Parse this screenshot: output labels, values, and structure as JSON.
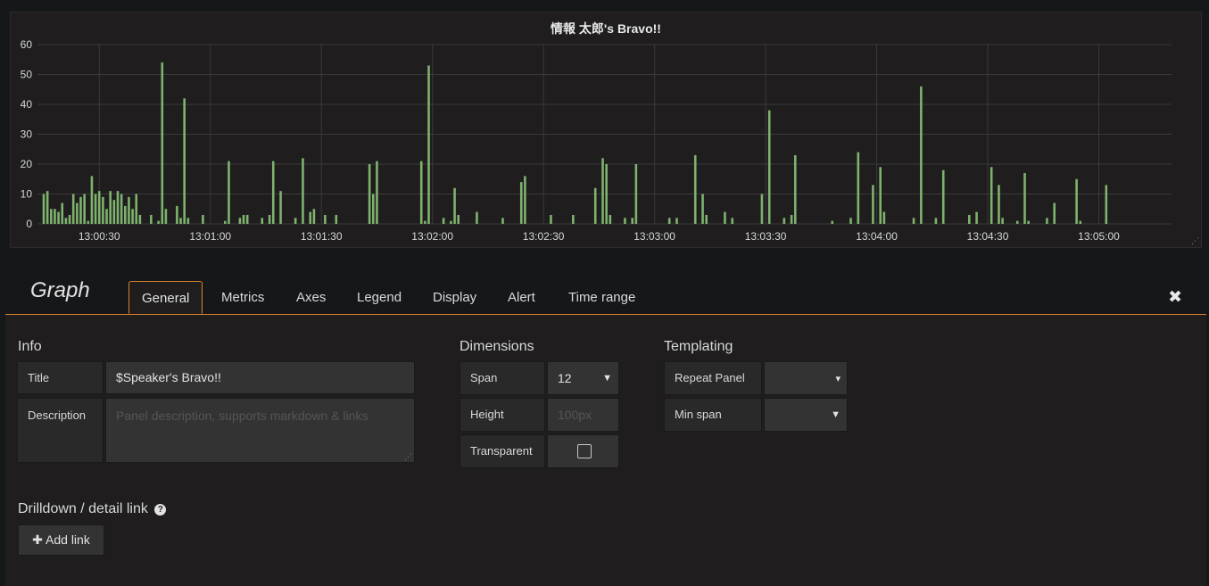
{
  "panel": {
    "title": "情報 太郎's Bravo!!"
  },
  "chart_data": {
    "type": "bar",
    "title": "情報 太郎's Bravo!!",
    "xlabel": "",
    "ylabel": "",
    "ylim": [
      0,
      60
    ],
    "yticks": [
      "0",
      "10",
      "20",
      "30",
      "40",
      "50",
      "60"
    ],
    "xticks": [
      "13:00:30",
      "13:01:00",
      "13:01:30",
      "13:02:00",
      "13:02:30",
      "13:03:00",
      "13:03:30",
      "13:04:00",
      "13:04:30",
      "13:05:00"
    ],
    "grid": true,
    "color": "#7eb26d",
    "x_range_seconds": [
      15,
      310
    ],
    "x_tick_seconds": [
      30,
      60,
      90,
      120,
      150,
      180,
      210,
      240,
      270,
      300
    ],
    "points": [
      [
        15,
        10
      ],
      [
        16,
        11
      ],
      [
        17,
        5
      ],
      [
        18,
        5
      ],
      [
        19,
        4
      ],
      [
        20,
        7
      ],
      [
        21,
        2
      ],
      [
        22,
        3
      ],
      [
        23,
        10
      ],
      [
        24,
        7
      ],
      [
        25,
        9
      ],
      [
        26,
        10
      ],
      [
        27,
        1
      ],
      [
        28,
        16
      ],
      [
        29,
        10
      ],
      [
        30,
        11
      ],
      [
        31,
        9
      ],
      [
        32,
        5
      ],
      [
        33,
        11
      ],
      [
        34,
        8
      ],
      [
        35,
        11
      ],
      [
        36,
        10
      ],
      [
        37,
        6
      ],
      [
        38,
        9
      ],
      [
        39,
        5
      ],
      [
        40,
        10
      ],
      [
        41,
        3
      ],
      [
        44,
        3
      ],
      [
        46,
        1
      ],
      [
        47,
        54
      ],
      [
        48,
        5
      ],
      [
        51,
        6
      ],
      [
        52,
        2
      ],
      [
        53,
        42
      ],
      [
        54,
        2
      ],
      [
        58,
        3
      ],
      [
        64,
        1
      ],
      [
        65,
        21
      ],
      [
        68,
        2
      ],
      [
        69,
        3
      ],
      [
        70,
        3
      ],
      [
        74,
        2
      ],
      [
        76,
        3
      ],
      [
        77,
        21
      ],
      [
        79,
        11
      ],
      [
        83,
        2
      ],
      [
        85,
        22
      ],
      [
        87,
        4
      ],
      [
        88,
        5
      ],
      [
        91,
        3
      ],
      [
        94,
        3
      ],
      [
        103,
        20
      ],
      [
        104,
        10
      ],
      [
        105,
        21
      ],
      [
        117,
        21
      ],
      [
        118,
        1
      ],
      [
        119,
        53
      ],
      [
        123,
        2
      ],
      [
        125,
        1
      ],
      [
        126,
        12
      ],
      [
        127,
        3
      ],
      [
        132,
        4
      ],
      [
        139,
        2
      ],
      [
        144,
        14
      ],
      [
        145,
        16
      ],
      [
        152,
        3
      ],
      [
        158,
        3
      ],
      [
        164,
        12
      ],
      [
        166,
        22
      ],
      [
        167,
        20
      ],
      [
        168,
        3
      ],
      [
        172,
        2
      ],
      [
        174,
        2
      ],
      [
        175,
        20
      ],
      [
        184,
        2
      ],
      [
        186,
        2
      ],
      [
        191,
        23
      ],
      [
        193,
        10
      ],
      [
        194,
        3
      ],
      [
        199,
        4
      ],
      [
        201,
        2
      ],
      [
        209,
        10
      ],
      [
        211,
        38
      ],
      [
        215,
        2
      ],
      [
        217,
        3
      ],
      [
        218,
        23
      ],
      [
        228,
        1
      ],
      [
        233,
        2
      ],
      [
        235,
        24
      ],
      [
        239,
        13
      ],
      [
        241,
        19
      ],
      [
        242,
        4
      ],
      [
        250,
        2
      ],
      [
        252,
        46
      ],
      [
        256,
        2
      ],
      [
        258,
        18
      ],
      [
        265,
        3
      ],
      [
        267,
        4
      ],
      [
        271,
        19
      ],
      [
        273,
        13
      ],
      [
        274,
        2
      ],
      [
        278,
        1
      ],
      [
        280,
        17
      ],
      [
        281,
        1
      ],
      [
        286,
        2
      ],
      [
        288,
        7
      ],
      [
        294,
        15
      ],
      [
        295,
        1
      ],
      [
        302,
        13
      ]
    ]
  },
  "editor": {
    "title": "Graph",
    "tabs": [
      "General",
      "Metrics",
      "Axes",
      "Legend",
      "Display",
      "Alert",
      "Time range"
    ],
    "active_tab": "General",
    "close_glyph": "✖",
    "info": {
      "heading": "Info",
      "title_label": "Title",
      "title_value": "$Speaker's Bravo!!",
      "description_label": "Description",
      "description_placeholder": "Panel description, supports markdown & links"
    },
    "dimensions": {
      "heading": "Dimensions",
      "span_label": "Span",
      "span_value": "12",
      "height_label": "Height",
      "height_placeholder": "100px",
      "transparent_label": "Transparent",
      "transparent_checked": false
    },
    "templating": {
      "heading": "Templating",
      "repeat_label": "Repeat Panel",
      "repeat_value": "",
      "minspan_label": "Min span",
      "minspan_value": ""
    },
    "drilldown": {
      "heading": "Drilldown / detail link",
      "help_glyph": "?",
      "add_link_label": "✚ Add link"
    }
  }
}
